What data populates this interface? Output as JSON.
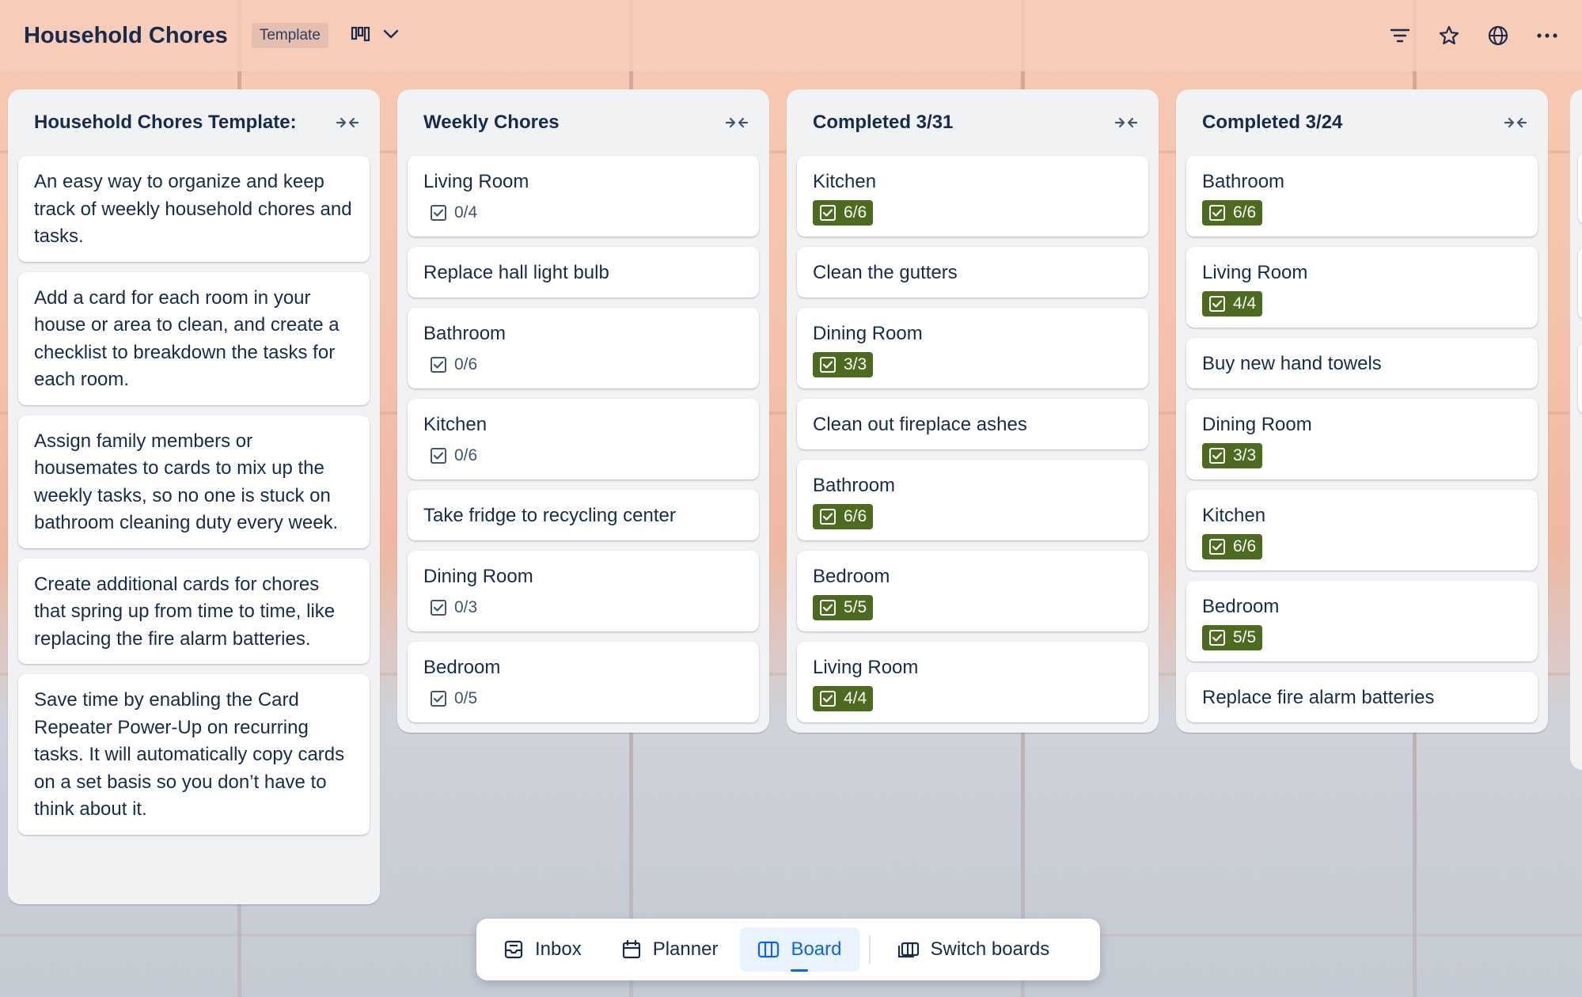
{
  "header": {
    "title": "Household Chores",
    "template_badge": "Template"
  },
  "lists": [
    {
      "title": "Household Chores Template:",
      "cards": [
        {
          "title": "An easy way to organize and keep track of weekly household chores and tasks."
        },
        {
          "title": "Add a card for each room in your house or area to clean, and create a checklist to breakdown the tasks for each room."
        },
        {
          "title": "Assign family members or housemates to cards to mix up the weekly tasks, so no one is stuck on bathroom cleaning duty every week."
        },
        {
          "title": "Create additional cards for chores that spring up from time to time, like replacing the fire alarm batteries."
        },
        {
          "title": "Save time by enabling the Card Repeater Power-Up on recurring tasks. It will automatically copy cards on a set basis so you don’t have to think about it."
        }
      ]
    },
    {
      "title": "Weekly Chores",
      "cards": [
        {
          "title": "Living Room",
          "checklist": "0/4"
        },
        {
          "title": "Replace hall light bulb"
        },
        {
          "title": "Bathroom",
          "checklist": "0/6"
        },
        {
          "title": "Kitchen",
          "checklist": "0/6"
        },
        {
          "title": "Take fridge to recycling center"
        },
        {
          "title": "Dining Room",
          "checklist": "0/3"
        },
        {
          "title": "Bedroom",
          "checklist": "0/5"
        }
      ]
    },
    {
      "title": "Completed 3/31",
      "cards": [
        {
          "title": "Kitchen",
          "checklist": "6/6"
        },
        {
          "title": "Clean the gutters"
        },
        {
          "title": "Dining Room",
          "checklist": "3/3"
        },
        {
          "title": "Clean out fireplace ashes"
        },
        {
          "title": "Bathroom",
          "checklist": "6/6"
        },
        {
          "title": "Bedroom",
          "checklist": "5/5"
        },
        {
          "title": "Living Room",
          "checklist": "4/4"
        }
      ]
    },
    {
      "title": "Completed 3/24",
      "cards": [
        {
          "title": "Bathroom",
          "checklist": "6/6"
        },
        {
          "title": "Living Room",
          "checklist": "4/4"
        },
        {
          "title": "Buy new hand towels"
        },
        {
          "title": "Dining Room",
          "checklist": "3/3"
        },
        {
          "title": "Kitchen",
          "checklist": "6/6"
        },
        {
          "title": "Bedroom",
          "checklist": "5/5"
        },
        {
          "title": "Replace fire alarm batteries"
        }
      ]
    }
  ],
  "bottom_nav": {
    "inbox": "Inbox",
    "planner": "Planner",
    "board": "Board",
    "switch_boards": "Switch boards"
  },
  "colors": {
    "complete_badge": "#4c6b1f",
    "accent": "#0c66e4",
    "title_text": "#172b4d"
  },
  "icons": [
    "board-view-icon",
    "chevron-down-icon",
    "filter-icon",
    "star-icon",
    "globe-icon",
    "more-icon",
    "collapse-icon",
    "checklist-icon",
    "inbox-icon",
    "planner-icon",
    "board-icon",
    "switch-boards-icon"
  ]
}
